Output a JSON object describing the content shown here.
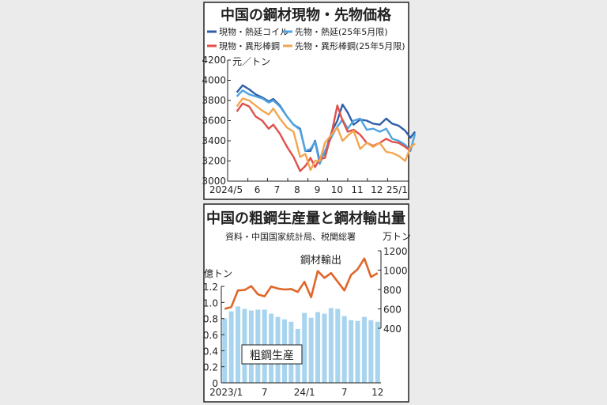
{
  "chart_data": [
    {
      "type": "line",
      "title": "中国の鋼材現物・先物価格",
      "ylabel": "元／トン",
      "ylim": [
        3000,
        4200
      ],
      "yticks": [
        "3000",
        "3200",
        "3400",
        "3600",
        "3800",
        "4000",
        "4200"
      ],
      "xticks": [
        {
          "label": "2024/5",
          "date": "2024-05-01"
        },
        {
          "label": "6",
          "date": "2024-06-01"
        },
        {
          "label": "7",
          "date": "2024-07-01"
        },
        {
          "label": "8",
          "date": "2024-08-01"
        },
        {
          "label": "9",
          "date": "2024-09-01"
        },
        {
          "label": "10",
          "date": "2024-10-01"
        },
        {
          "label": "11",
          "date": "2024-11-01"
        },
        {
          "label": "12",
          "date": "2024-12-01"
        },
        {
          "label": "25/1",
          "date": "2025-01-01"
        }
      ],
      "x": [
        "2024-05-15",
        "2024-05-24",
        "2024-06-03",
        "2024-06-13",
        "2024-06-23",
        "2024-07-03",
        "2024-07-10",
        "2024-07-20",
        "2024-07-31",
        "2024-08-10",
        "2024-08-20",
        "2024-08-28",
        "2024-09-05",
        "2024-09-12",
        "2024-09-19",
        "2024-09-27",
        "2024-10-08",
        "2024-10-16",
        "2024-10-24",
        "2024-11-01",
        "2024-11-10",
        "2024-11-20",
        "2024-11-30",
        "2024-12-10",
        "2024-12-20",
        "2024-12-30",
        "2025-01-08",
        "2025-01-18",
        "2025-01-28",
        "2025-02-05",
        "2025-02-12"
      ],
      "series": [
        {
          "name": "現物・熱延コイル",
          "color": "#2f5fa8",
          "values": [
            3880,
            3950,
            3910,
            3860,
            3830,
            3790,
            3815,
            3750,
            3640,
            3560,
            3520,
            3300,
            3300,
            3400,
            3200,
            3280,
            3500,
            3600,
            3760,
            3680,
            3560,
            3610,
            3600,
            3570,
            3560,
            3620,
            3570,
            3550,
            3500,
            3430,
            3490
          ]
        },
        {
          "name": "先物・熱延(25年5月限)",
          "color": "#4ea3e0",
          "values": [
            3840,
            3900,
            3860,
            3840,
            3820,
            3780,
            3800,
            3740,
            3640,
            3560,
            3510,
            3300,
            3320,
            3390,
            3170,
            3300,
            3450,
            3540,
            3610,
            3520,
            3600,
            3620,
            3510,
            3520,
            3490,
            3520,
            3420,
            3400,
            3360,
            3300,
            3470
          ]
        },
        {
          "name": "現物・異形棒鋼",
          "color": "#e0504a",
          "values": [
            3690,
            3770,
            3740,
            3640,
            3600,
            3520,
            3560,
            3470,
            3340,
            3240,
            3100,
            3150,
            3230,
            3140,
            3220,
            3230,
            3500,
            3750,
            3600,
            3490,
            3510,
            3460,
            3380,
            3350,
            3380,
            3420,
            3390,
            3380,
            3340,
            3300,
            null
          ]
        },
        {
          "name": "先物・異形棒鋼(25年5月限)",
          "color": "#f3a650",
          "values": [
            3740,
            3820,
            3800,
            3750,
            3700,
            3660,
            3720,
            3620,
            3530,
            3490,
            3240,
            3270,
            3110,
            3200,
            3200,
            3380,
            3470,
            3530,
            3400,
            3450,
            3500,
            3320,
            3380,
            3340,
            3380,
            3290,
            3280,
            3250,
            3200,
            3340,
            3370
          ]
        }
      ]
    },
    {
      "type": "bar+line",
      "title": "中国の粗鋼生産量と鋼材輸出量",
      "source": "資料・中国国家統計局、税関総署",
      "categories": [
        "2023/1",
        "2",
        "3",
        "4",
        "5",
        "6",
        "7",
        "8",
        "9",
        "10",
        "11",
        "12",
        "24/1",
        "2",
        "3",
        "4",
        "5",
        "6",
        "7",
        "8",
        "9",
        "10",
        "11",
        "12"
      ],
      "xtick_labels": [
        {
          "index": 0,
          "label": "2023/1"
        },
        {
          "index": 6,
          "label": "7"
        },
        {
          "index": 12,
          "label": "24/1"
        },
        {
          "index": 18,
          "label": "7"
        },
        {
          "index": 23,
          "label": "12"
        }
      ],
      "left_axis": {
        "label": "億トン",
        "ylim": [
          0,
          1.2
        ],
        "ticks": [
          "0",
          "0.2",
          "0.4",
          "0.6",
          "0.8",
          "1.0",
          "1.2"
        ]
      },
      "right_axis": {
        "label": "万トン",
        "ylim": [
          400,
          1200
        ],
        "ticks": [
          "400",
          "600",
          "800",
          "1000",
          "1200"
        ]
      },
      "series": [
        {
          "name": "粗鋼生産",
          "type": "bar",
          "axis": "left",
          "color": "#a8d4ee",
          "values": [
            0.8,
            0.89,
            0.95,
            0.92,
            0.9,
            0.91,
            0.91,
            0.86,
            0.82,
            0.79,
            0.76,
            0.67,
            0.87,
            0.81,
            0.88,
            0.86,
            0.93,
            0.92,
            0.83,
            0.78,
            0.77,
            0.82,
            0.78,
            0.76
          ]
        },
        {
          "name": "鋼材輸出",
          "type": "line",
          "axis": "right",
          "color": "#e0662a",
          "values": [
            600,
            620,
            790,
            795,
            835,
            750,
            730,
            830,
            810,
            800,
            805,
            775,
            880,
            720,
            990,
            920,
            970,
            880,
            790,
            950,
            1010,
            1120,
            930,
            970
          ]
        }
      ]
    }
  ]
}
